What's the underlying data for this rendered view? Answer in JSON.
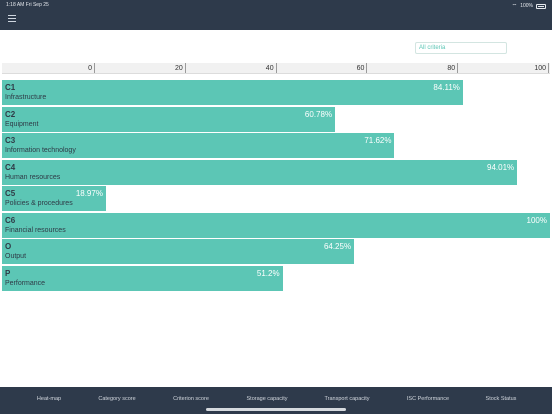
{
  "status_bar": {
    "time": "1:18 AM",
    "date": "Fri Sep 25",
    "battery": "100%",
    "wifi_icon": "wifi-icon",
    "battery_icon": "battery-icon"
  },
  "header": {
    "menu_icon": "hamburger-menu-icon"
  },
  "filter": {
    "label": "All criteria"
  },
  "colors": {
    "bar": "#5cc6b5",
    "nav": "#2e3a4b"
  },
  "chart_data": {
    "type": "bar",
    "orientation": "horizontal",
    "xlim": [
      0,
      100
    ],
    "ticks": [
      0,
      20,
      40,
      60,
      80,
      100
    ],
    "tick_labels": [
      "0",
      "20",
      "40",
      "60",
      "80",
      "100"
    ],
    "categories": [
      {
        "code": "C1",
        "name": "Infrastructure",
        "value": 84.11,
        "label": "84.11%"
      },
      {
        "code": "C2",
        "name": "Equipment",
        "value": 60.78,
        "label": "60.78%"
      },
      {
        "code": "C3",
        "name": "Information technology",
        "value": 71.62,
        "label": "71.62%"
      },
      {
        "code": "C4",
        "name": "Human resources",
        "value": 94.01,
        "label": "94.01%"
      },
      {
        "code": "C5",
        "name": "Policies & procedures",
        "value": 18.97,
        "label": "18.97%"
      },
      {
        "code": "C6",
        "name": "Financial resources",
        "value": 100,
        "label": "100%"
      },
      {
        "code": "O",
        "name": "Output",
        "value": 64.25,
        "label": "64.25%"
      },
      {
        "code": "P",
        "name": "Performance",
        "value": 51.2,
        "label": "51.2%"
      }
    ]
  },
  "tabs": [
    {
      "label": "Heat-map"
    },
    {
      "label": "Category score"
    },
    {
      "label": "Criterion score"
    },
    {
      "label": "Storage capacity"
    },
    {
      "label": "Transport capacity"
    },
    {
      "label": "ISC Performance"
    },
    {
      "label": "Stock Status"
    }
  ]
}
